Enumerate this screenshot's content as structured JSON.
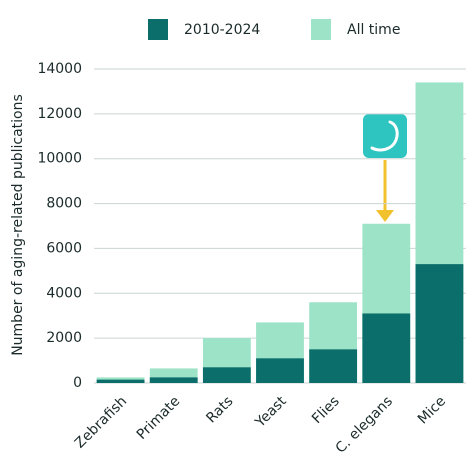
{
  "chart_data": {
    "type": "bar",
    "y_label": "Number of aging-related publications",
    "categories": [
      "Zebrafish",
      "Primate",
      "Rats",
      "Yeast",
      "Flies",
      "C. elegans",
      "Mice"
    ],
    "series": [
      {
        "name": "All time",
        "color": "#9de3c8",
        "values": [
          250,
          650,
          2000,
          2700,
          3600,
          7100,
          13400
        ]
      },
      {
        "name": "2010-2024",
        "color": "#0b6e6b",
        "values": [
          150,
          250,
          700,
          1100,
          1500,
          3100,
          5300
        ]
      }
    ],
    "ylim": [
      0,
      14000
    ],
    "yticks": [
      0,
      2000,
      4000,
      6000,
      8000,
      10000,
      12000,
      14000
    ],
    "grid": true
  }
}
